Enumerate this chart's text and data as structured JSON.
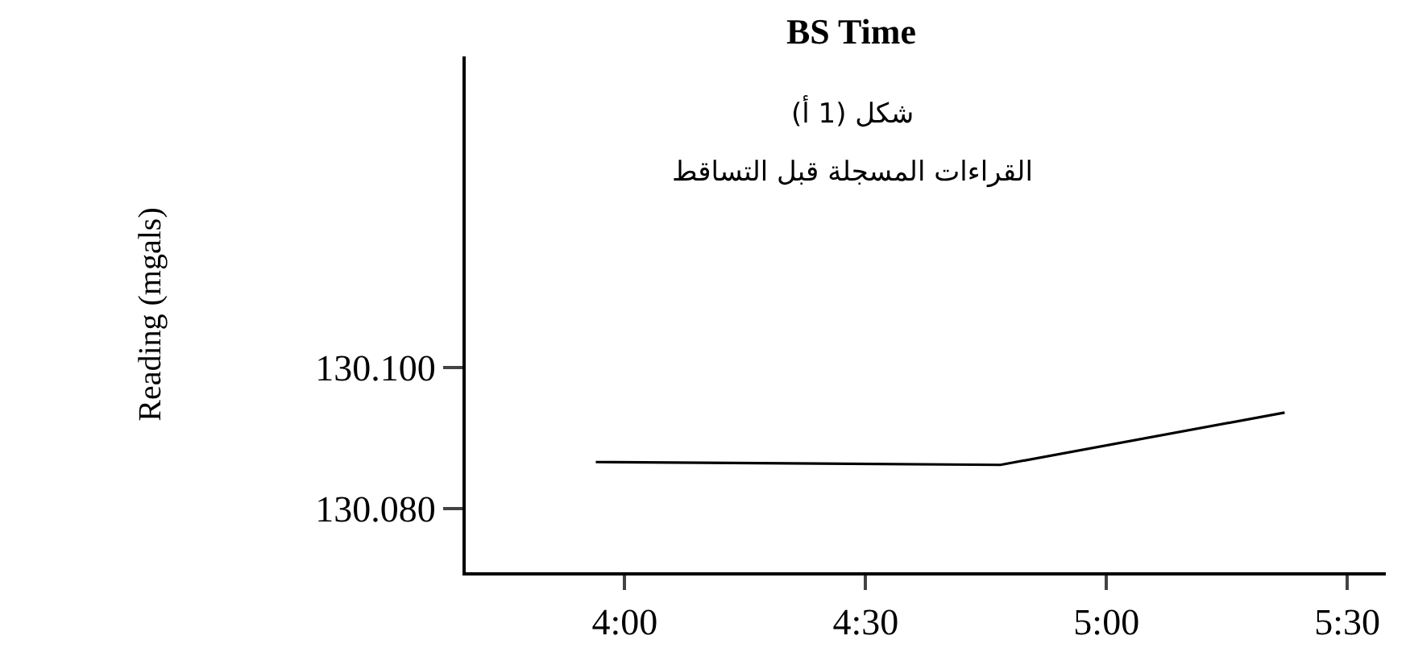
{
  "chart_data": {
    "type": "line",
    "title": "BS Time",
    "subtitle": "شكل (1 أ)",
    "annotations": [
      "القراءات المسجلة قبل التساقط"
    ],
    "ylabel": "Reading (mgals)",
    "x": [
      3.94,
      4.78,
      5.37
    ],
    "series": [
      {
        "color": "#000000",
        "values": [
          130.0866,
          130.0862,
          130.0936
        ]
      }
    ],
    "xlim": [
      3.67,
      5.58
    ],
    "xticks": [
      {
        "value": 4,
        "label": "4:00"
      },
      {
        "value": 4.5,
        "label": "4:30"
      },
      {
        "value": 5,
        "label": "5:00"
      },
      {
        "value": 5.5,
        "label": "5:30"
      }
    ],
    "ylim": [
      130.071,
      130.144
    ],
    "yticks": [
      {
        "value": 130.08,
        "label": "130.080"
      },
      {
        "value": 130.1,
        "label": "130.100"
      }
    ],
    "legend": false,
    "marker": "none",
    "line_style": "solid"
  }
}
